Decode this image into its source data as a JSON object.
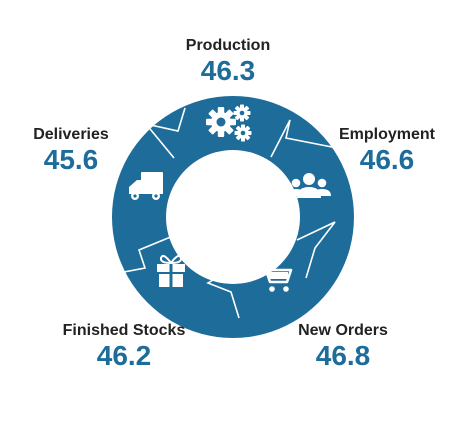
{
  "colors": {
    "ring": "#1e6c9a",
    "value_text": "#1e6c9a",
    "label_text": "#222222",
    "separator": "#ffffff"
  },
  "segments": [
    {
      "label": "Production",
      "value": "46.3",
      "icon": "gears-icon"
    },
    {
      "label": "Employment",
      "value": "46.6",
      "icon": "people-group-icon"
    },
    {
      "label": "New Orders",
      "value": "46.8",
      "icon": "shopping-cart-icon"
    },
    {
      "label": "Finished Stocks",
      "value": "46.2",
      "icon": "gift-box-icon"
    },
    {
      "label": "Deliveries",
      "value": "45.6",
      "icon": "delivery-truck-icon"
    }
  ]
}
